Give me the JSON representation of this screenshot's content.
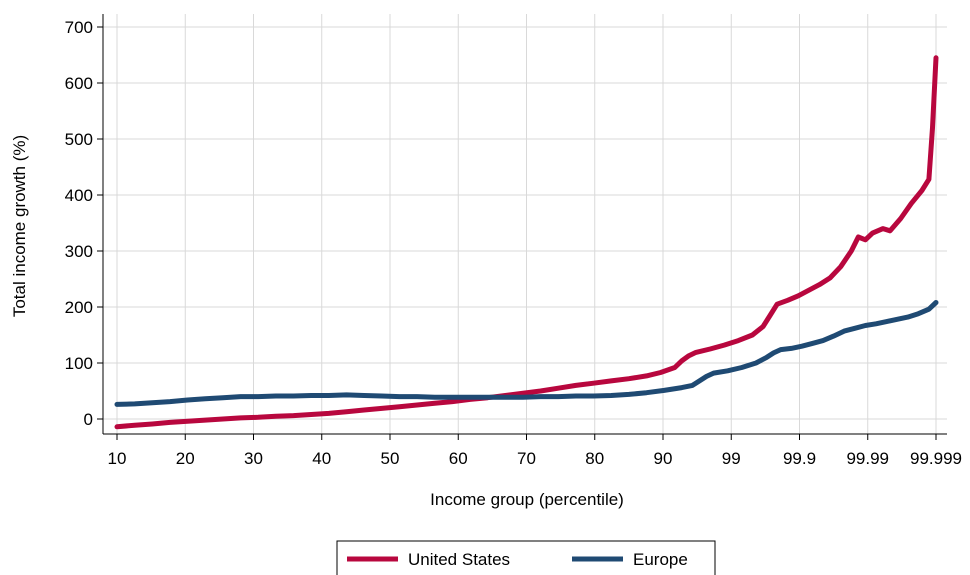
{
  "chart_data": {
    "type": "line",
    "xlabel": "Income group (percentile)",
    "ylabel": "Total income growth (%)",
    "ylim": [
      -20,
      720
    ],
    "yticks": [
      0,
      100,
      200,
      300,
      400,
      500,
      600,
      700
    ],
    "x_ticks": [
      "10",
      "20",
      "30",
      "40",
      "50",
      "60",
      "70",
      "80",
      "90",
      "99",
      "99.9",
      "99.99",
      "99.999"
    ],
    "grid": true,
    "legend_position": "bottom",
    "series": [
      {
        "name": "United States",
        "color": "#b8073e",
        "points": [
          [
            0,
            -14
          ],
          [
            0.5,
            -11
          ],
          [
            1,
            -9
          ],
          [
            1.5,
            -6
          ],
          [
            2,
            -4
          ],
          [
            2.5,
            -2
          ],
          [
            3,
            0
          ],
          [
            3.5,
            2
          ],
          [
            4,
            3
          ],
          [
            4.5,
            5
          ],
          [
            5,
            6
          ],
          [
            5.5,
            8
          ],
          [
            6,
            10
          ],
          [
            6.5,
            13
          ],
          [
            7,
            16
          ],
          [
            7.5,
            19
          ],
          [
            8,
            22
          ],
          [
            8.5,
            25
          ],
          [
            9,
            28
          ],
          [
            9.5,
            31
          ],
          [
            10,
            35
          ],
          [
            10.5,
            38
          ],
          [
            11,
            42
          ],
          [
            11.5,
            46
          ],
          [
            12,
            50
          ],
          [
            12.5,
            55
          ],
          [
            13,
            60
          ],
          [
            13.5,
            64
          ],
          [
            14,
            68
          ],
          [
            14.5,
            72
          ],
          [
            15,
            77
          ],
          [
            15.4,
            83
          ],
          [
            15.8,
            92
          ],
          [
            16.0,
            104
          ],
          [
            16.2,
            113
          ],
          [
            16.4,
            119
          ],
          [
            16.8,
            125
          ],
          [
            17.2,
            132
          ],
          [
            17.6,
            140
          ],
          [
            18.0,
            150
          ],
          [
            18.3,
            165
          ],
          [
            18.5,
            185
          ],
          [
            18.7,
            205
          ],
          [
            19.0,
            212
          ],
          [
            19.3,
            220
          ],
          [
            19.6,
            230
          ],
          [
            19.9,
            240
          ],
          [
            20.2,
            252
          ],
          [
            20.5,
            272
          ],
          [
            20.8,
            300
          ],
          [
            21.0,
            325
          ],
          [
            21.2,
            320
          ],
          [
            21.4,
            332
          ],
          [
            21.7,
            340
          ],
          [
            21.9,
            336
          ],
          [
            22.2,
            358
          ],
          [
            22.5,
            385
          ],
          [
            22.8,
            408
          ],
          [
            23.0,
            428
          ],
          [
            23.1,
            520
          ],
          [
            23.2,
            645
          ]
        ]
      },
      {
        "name": "Europe",
        "color": "#1f4a73",
        "points": [
          [
            0,
            26
          ],
          [
            0.5,
            27
          ],
          [
            1,
            29
          ],
          [
            1.5,
            31
          ],
          [
            2,
            34
          ],
          [
            2.5,
            36
          ],
          [
            3,
            38
          ],
          [
            3.5,
            40
          ],
          [
            4,
            40
          ],
          [
            4.5,
            41
          ],
          [
            5,
            41
          ],
          [
            5.5,
            42
          ],
          [
            6,
            42
          ],
          [
            6.5,
            43
          ],
          [
            7,
            42
          ],
          [
            7.5,
            41
          ],
          [
            8,
            40
          ],
          [
            8.5,
            40
          ],
          [
            9,
            39
          ],
          [
            9.5,
            39
          ],
          [
            10,
            39
          ],
          [
            10.5,
            39
          ],
          [
            11,
            39
          ],
          [
            11.5,
            39
          ],
          [
            12,
            40
          ],
          [
            12.5,
            40
          ],
          [
            13,
            41
          ],
          [
            13.5,
            41
          ],
          [
            14,
            42
          ],
          [
            14.5,
            44
          ],
          [
            15,
            47
          ],
          [
            15.5,
            51
          ],
          [
            16,
            56
          ],
          [
            16.3,
            60
          ],
          [
            16.5,
            68
          ],
          [
            16.7,
            76
          ],
          [
            16.9,
            82
          ],
          [
            17.3,
            86
          ],
          [
            17.7,
            92
          ],
          [
            18.1,
            100
          ],
          [
            18.4,
            110
          ],
          [
            18.6,
            118
          ],
          [
            18.8,
            124
          ],
          [
            19.1,
            126
          ],
          [
            19.4,
            130
          ],
          [
            19.7,
            135
          ],
          [
            20.0,
            140
          ],
          [
            20.3,
            148
          ],
          [
            20.6,
            157
          ],
          [
            20.9,
            162
          ],
          [
            21.2,
            167
          ],
          [
            21.5,
            170
          ],
          [
            21.8,
            174
          ],
          [
            22.1,
            178
          ],
          [
            22.4,
            182
          ],
          [
            22.7,
            188
          ],
          [
            23.0,
            196
          ],
          [
            23.2,
            208
          ]
        ]
      }
    ]
  }
}
